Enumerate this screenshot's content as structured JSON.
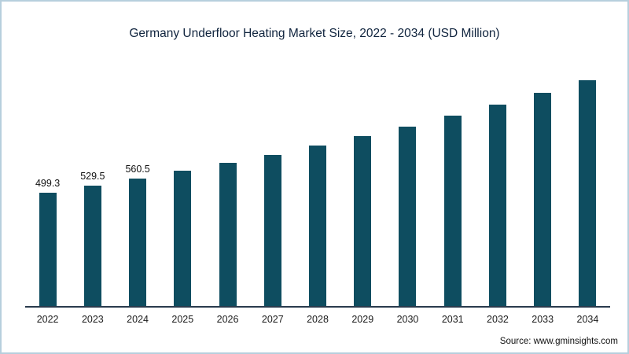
{
  "title": "Germany Underfloor Heating Market Size, 2022 - 2034 (USD Million)",
  "source": "Source: www.gminsights.com",
  "colors": {
    "bar": "#0e4d60",
    "axis": "#2a3b4d",
    "border": "#b7cfdd",
    "title_text": "#10243e"
  },
  "chart_data": {
    "type": "bar",
    "title": "Germany Underfloor Heating Market Size, 2022 - 2034 (USD Million)",
    "categories": [
      "2022",
      "2023",
      "2024",
      "2025",
      "2026",
      "2027",
      "2028",
      "2029",
      "2030",
      "2031",
      "2032",
      "2033",
      "2034"
    ],
    "values": [
      499.3,
      529.5,
      560.5,
      593.5,
      628.5,
      665.5,
      704.5,
      746.0,
      790.0,
      836.5,
      885.5,
      937.5,
      992.5
    ],
    "data_labels": [
      "499.3",
      "529.5",
      "560.5",
      null,
      null,
      null,
      null,
      null,
      null,
      null,
      null,
      null,
      null
    ],
    "xlabel": "",
    "ylabel": "",
    "ylim": [
      0,
      1020
    ],
    "grid": false,
    "legend": "none",
    "bar_color": "#0e4d60"
  }
}
